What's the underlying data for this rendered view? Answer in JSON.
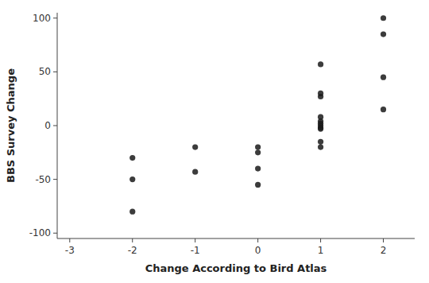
{
  "chart_data": {
    "type": "scatter",
    "x": [
      -2,
      -2,
      -2,
      -1,
      -1,
      0,
      0,
      0,
      0,
      1,
      1,
      1,
      1,
      1,
      1,
      1,
      1,
      1,
      1,
      1,
      2,
      2,
      2,
      2
    ],
    "y": [
      -30,
      -50,
      -80,
      -20,
      -43,
      -20,
      -25,
      -40,
      -55,
      57,
      30,
      27,
      8,
      4,
      2,
      0,
      -2,
      -3,
      -15,
      -20,
      100,
      85,
      45,
      15
    ],
    "xlabel": "Change According to Bird Atlas",
    "ylabel": "BBS Survey Change",
    "xlim": [
      -3.2,
      2.5
    ],
    "ylim": [
      -105,
      105
    ],
    "xticks": [
      -3,
      -2,
      -1,
      0,
      1,
      2
    ],
    "yticks": [
      -100,
      -50,
      0,
      50,
      100
    ],
    "color": "#1a1a1a"
  }
}
